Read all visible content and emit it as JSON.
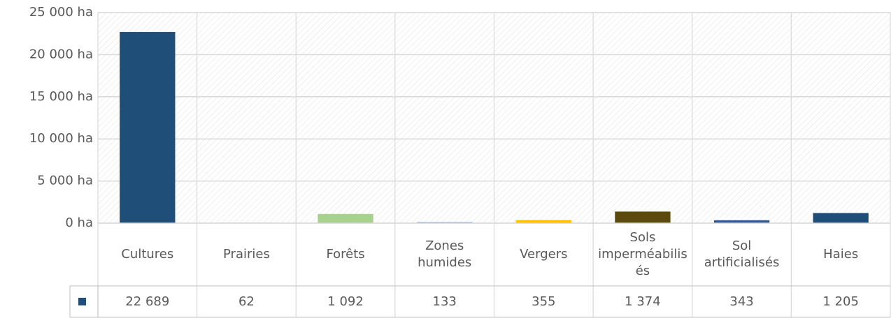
{
  "chart_data": {
    "type": "bar",
    "categories": [
      "Cultures",
      "Prairies",
      "Forêts",
      "Zones humides",
      "Vergers",
      "Sols imperméabilisés",
      "Sol artificialisés",
      "Haies"
    ],
    "values": [
      22689,
      62,
      1092,
      133,
      355,
      1374,
      343,
      1205
    ],
    "value_labels": [
      "22 689",
      "62",
      "1 092",
      "133",
      "355",
      "1 374",
      "343",
      "1 205"
    ],
    "colors": [
      "#1f4e79",
      "#a9d18e",
      "#a9d18e",
      "#8faadc",
      "#ffc000",
      "#5c4a0c",
      "#2e5a8a",
      "#1f4e79"
    ],
    "ylim": [
      0,
      25000
    ],
    "yticks": [
      {
        "value": 0,
        "label": "0 ha"
      },
      {
        "value": 5000,
        "label": "5 000 ha"
      },
      {
        "value": 10000,
        "label": "10 000 ha"
      },
      {
        "value": 15000,
        "label": "15 000 ha"
      },
      {
        "value": 20000,
        "label": "20 000 ha"
      },
      {
        "value": 25000,
        "label": "25 000 ha"
      }
    ],
    "grid": true
  }
}
